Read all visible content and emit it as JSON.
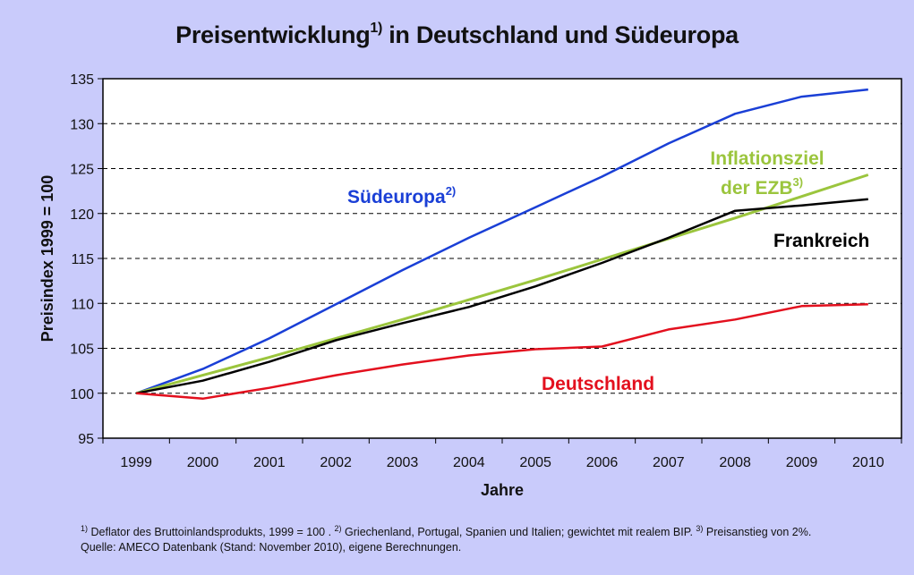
{
  "title": {
    "main_before": "Preisentwicklung",
    "main_sup": "1)",
    "main_after": " in Deutschland und Südeuropa"
  },
  "footnote": {
    "line1_parts": [
      {
        "sup": "1)",
        "text": " Deflator des Bruttoinlandsprodukts, 1999 = 100 . "
      },
      {
        "sup": "2)",
        "text": " Griechenland, Portugal, Spanien und Italien; gewichtet mit realem BIP. "
      },
      {
        "sup": "3)",
        "text": " Preisanstieg von 2%."
      }
    ],
    "line2": "Quelle: AMECO Datenbank (Stand: November 2010), eigene Berechnungen."
  },
  "colors": {
    "background": "#c9cbfb",
    "plot_background": "#ffffff",
    "suedeuropa": "#1a3fd6",
    "inflationsziel": "#9bc53d",
    "frankreich": "#000000",
    "deutschland": "#e3101e"
  },
  "chart_data": {
    "type": "line",
    "title": "Preisentwicklung1) in Deutschland und Südeuropa",
    "xlabel": "Jahre",
    "ylabel": "Preisindex 1999 = 100",
    "ylim": [
      95,
      135
    ],
    "yticks": [
      95,
      100,
      105,
      110,
      115,
      120,
      125,
      130,
      135
    ],
    "grid": "horizontal dashed",
    "legend": "inline labels",
    "categories": [
      "1999",
      "2000",
      "2001",
      "2002",
      "2003",
      "2004",
      "2005",
      "2006",
      "2007",
      "2008",
      "2009",
      "2010"
    ],
    "series": [
      {
        "name": "Südeuropa",
        "label_sup": "2)",
        "color_key": "suedeuropa",
        "values": [
          100,
          102.7,
          106.1,
          109.9,
          113.7,
          117.3,
          120.7,
          124.1,
          127.8,
          131.1,
          133.0,
          133.8
        ]
      },
      {
        "name": "Inflationsziel der EZB",
        "label_line1": "Inflationsziel",
        "label_line2": "der EZB",
        "label_sup": "3)",
        "color_key": "inflationsziel",
        "values": [
          100,
          102.0,
          104.0,
          106.1,
          108.2,
          110.4,
          112.6,
          114.9,
          117.2,
          119.5,
          121.9,
          124.3
        ]
      },
      {
        "name": "Frankreich",
        "label_sup": "",
        "color_key": "frankreich",
        "values": [
          100,
          101.4,
          103.5,
          105.9,
          107.8,
          109.6,
          111.9,
          114.5,
          117.3,
          120.3,
          120.9,
          121.6
        ]
      },
      {
        "name": "Deutschland",
        "label_sup": "",
        "color_key": "deutschland",
        "values": [
          100,
          99.4,
          100.6,
          102.0,
          103.2,
          104.2,
          104.9,
          105.2,
          107.1,
          108.2,
          109.7,
          109.9
        ]
      }
    ],
    "annotations": [
      {
        "text": "Südeuropa",
        "sup": "2)",
        "series": "Südeuropa",
        "near": "2002-2003, above line"
      },
      {
        "text": "Inflationsziel der EZB",
        "sup": "3)",
        "series": "Inflationsziel der EZB",
        "near": "2008-2009, above line"
      },
      {
        "text": "Frankreich",
        "sup": "",
        "series": "Frankreich",
        "near": "2009, below line"
      },
      {
        "text": "Deutschland",
        "sup": "",
        "series": "Deutschland",
        "near": "2006, below line"
      }
    ]
  }
}
